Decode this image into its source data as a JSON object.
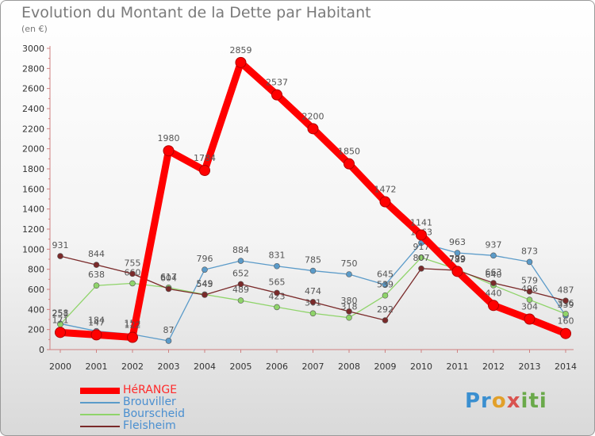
{
  "chart_data": {
    "type": "line",
    "title": "Evolution du Montant de la Dette par Habitant",
    "subtitle": "(en €)",
    "categories": [
      "2000",
      "2001",
      "2002",
      "2003",
      "2004",
      "2005",
      "2006",
      "2007",
      "2008",
      "2009",
      "2010",
      "2011",
      "2012",
      "2013",
      "2014"
    ],
    "ylim": [
      0,
      3000
    ],
    "yticks": [
      0,
      200,
      400,
      600,
      800,
      1000,
      1200,
      1400,
      1600,
      1800,
      2000,
      2200,
      2400,
      2600,
      2800,
      3000
    ],
    "grid": false,
    "legend_position": "bottom-left",
    "series": [
      {
        "name": "Brouviller",
        "color": "#5b9bc9",
        "values": [
          258,
          184,
          152,
          87,
          796,
          884,
          831,
          785,
          750,
          645,
          1063,
          963,
          937,
          873,
          339
        ]
      },
      {
        "name": "Bourscheid",
        "color": "#8fd46a",
        "values": [
          251,
          638,
          660,
          617,
          549,
          489,
          423,
          361,
          318,
          539,
          917,
          799,
          640,
          496,
          356
        ]
      },
      {
        "name": "Fleisheim",
        "color": "#7a2a2a",
        "values": [
          931,
          844,
          755,
          604,
          545,
          652,
          565,
          474,
          380,
          292,
          807,
          789,
          663,
          579,
          487
        ]
      },
      {
        "name": "HéRANGE",
        "color": "#ff0000",
        "values": [
          171,
          147,
          122,
          1980,
          1784,
          2859,
          2537,
          2200,
          1850,
          1472,
          1141,
          779,
          440,
          304,
          160
        ]
      }
    ]
  },
  "legend": {
    "items": [
      "HéRANGE",
      "Brouviller",
      "Bourscheid",
      "Fleisheim"
    ]
  },
  "logo": {
    "p1": "Pr",
    "p2": "o",
    "p3": "x",
    "p4": "iti"
  }
}
